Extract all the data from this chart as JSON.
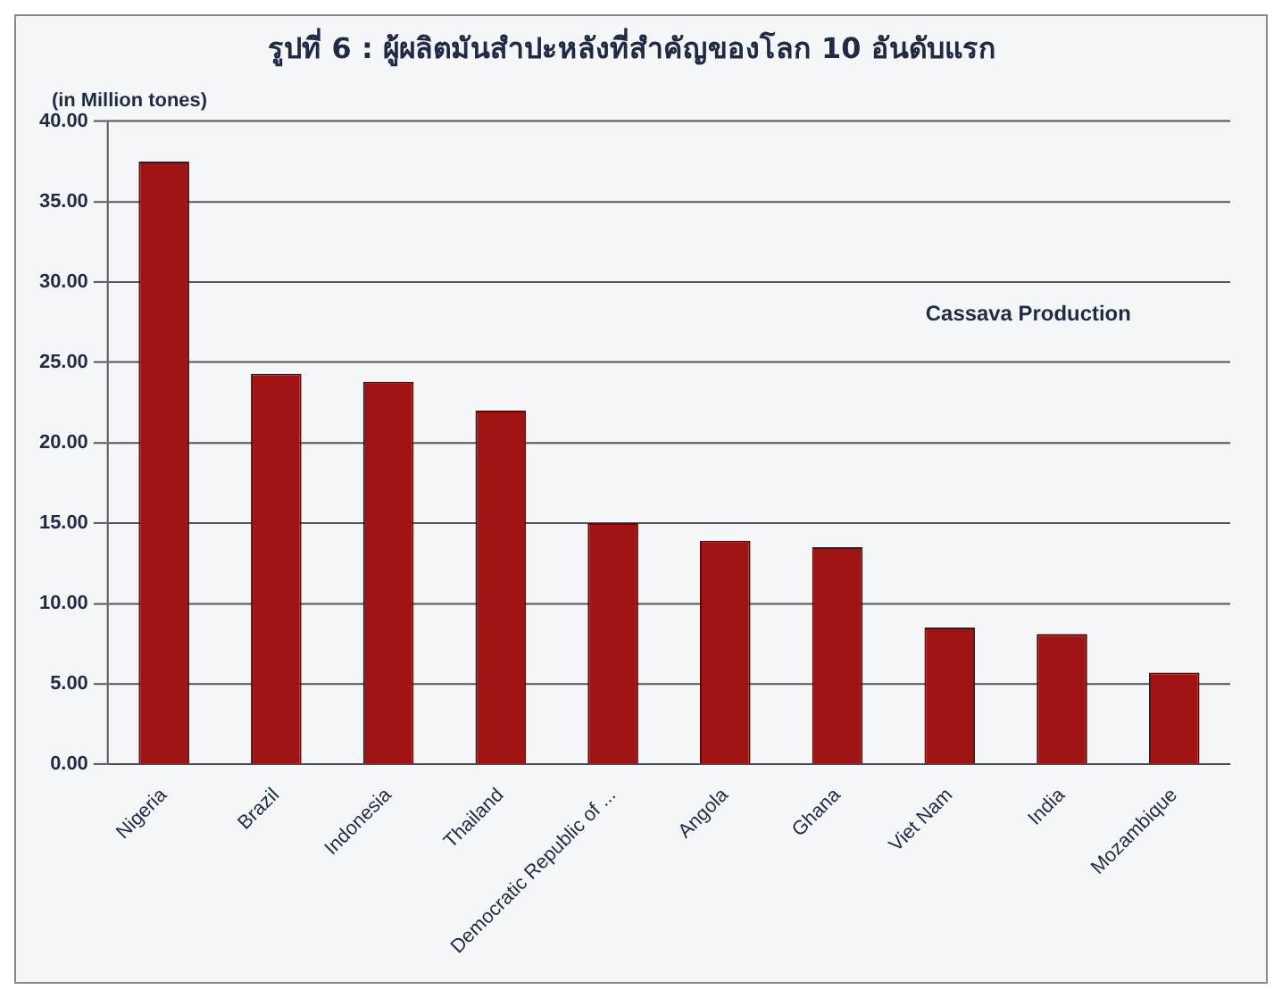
{
  "chart_data": {
    "type": "bar",
    "title": "รูปที่ 6 : ผู้ผลิตมันสำปะหลังที่สำคัญของโลก 10 อันดับแรก",
    "ylabel": "(in Million tones)",
    "annotations": [
      "Cassava Production"
    ],
    "categories": [
      "Nigeria",
      "Brazil",
      "Indonesia",
      "Thailand",
      "Democratic Republic of ...",
      "Angola",
      "Ghana",
      "Viet Nam",
      "India",
      "Mozambique"
    ],
    "values": [
      37.5,
      24.3,
      23.8,
      22.0,
      15.0,
      13.9,
      13.5,
      8.5,
      8.1,
      5.7
    ],
    "color": "#a01414",
    "ylim": [
      0,
      40
    ],
    "yticks": [
      {
        "value": 0,
        "label": "0.00"
      },
      {
        "value": 5,
        "label": "5.00"
      },
      {
        "value": 10,
        "label": "10.00"
      },
      {
        "value": 15,
        "label": "15.00"
      },
      {
        "value": 20,
        "label": "20.00"
      },
      {
        "value": 25,
        "label": "25.00"
      },
      {
        "value": 30,
        "label": "30.00"
      },
      {
        "value": 35,
        "label": "35.00"
      },
      {
        "value": 40,
        "label": "40.00"
      }
    ],
    "grid": "y"
  }
}
